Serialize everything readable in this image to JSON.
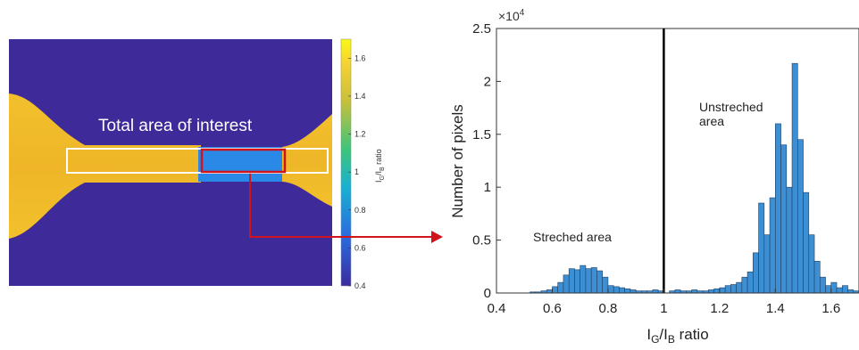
{
  "image_panel": {
    "overlay_label": "Total area of interest",
    "colorbar": {
      "label_main": "I",
      "label_sub_g": "G",
      "label_slash": "/I",
      "label_sub_b": "B",
      "label_rest": " ratio",
      "ticks": [
        "1.6",
        "1.4",
        "1.2",
        "1",
        "0.8",
        "0.6",
        "0.4"
      ],
      "range": [
        0.4,
        1.7
      ],
      "colors": [
        "#3a2b9e",
        "#2a6be0",
        "#18b1d2",
        "#3cc47c",
        "#c8c03a",
        "#f6d233",
        "#f9fa14"
      ]
    },
    "colors": {
      "background": "#3f2a9a",
      "specimen": "#f0b82a",
      "stretched": "#2a88e6",
      "box_white": "#ffffff",
      "box_red": "#d0141e",
      "arrow": "#d0141e"
    }
  },
  "chart_data": {
    "type": "bar",
    "title": "",
    "xlabel_main": "I",
    "xlabel_sub_g": "G",
    "xlabel_slash": "/I",
    "xlabel_sub_b": "B",
    "xlabel_rest": " ratio",
    "ylabel": "Number of pixels",
    "y_multiplier": "×10",
    "y_multiplier_exp": "4",
    "xlim": [
      0.4,
      1.7
    ],
    "ylim": [
      0,
      2.5
    ],
    "xticks": [
      "0.4",
      "0.6",
      "0.8",
      "1",
      "1.2",
      "1.4",
      "1.6"
    ],
    "yticks": [
      "0",
      "0.5",
      "1",
      "1.5",
      "2",
      "2.5"
    ],
    "divider_x": 1.0,
    "bar_color": "#3d8fd4",
    "bin_width": 0.02,
    "bin_starts": [
      0.4,
      0.42,
      0.44,
      0.46,
      0.48,
      0.5,
      0.52,
      0.54,
      0.56,
      0.58,
      0.6,
      0.62,
      0.64,
      0.66,
      0.68,
      0.7,
      0.72,
      0.74,
      0.76,
      0.78,
      0.8,
      0.82,
      0.84,
      0.86,
      0.88,
      0.9,
      0.92,
      0.94,
      0.96,
      0.98,
      1.0,
      1.02,
      1.04,
      1.06,
      1.08,
      1.1,
      1.12,
      1.14,
      1.16,
      1.18,
      1.2,
      1.22,
      1.24,
      1.26,
      1.28,
      1.3,
      1.32,
      1.34,
      1.36,
      1.38,
      1.4,
      1.42,
      1.44,
      1.46,
      1.48,
      1.5,
      1.52,
      1.54,
      1.56,
      1.58,
      1.6,
      1.62,
      1.64,
      1.66,
      1.68
    ],
    "values": [
      0,
      0,
      0,
      0,
      0,
      0,
      0.01,
      0.01,
      0.02,
      0.03,
      0.06,
      0.1,
      0.17,
      0.23,
      0.22,
      0.26,
      0.23,
      0.24,
      0.21,
      0.15,
      0.07,
      0.06,
      0.05,
      0.04,
      0.03,
      0.02,
      0.02,
      0.02,
      0.03,
      0.02,
      0,
      0.02,
      0.03,
      0.02,
      0.02,
      0.03,
      0.02,
      0.02,
      0.03,
      0.04,
      0.05,
      0.07,
      0.08,
      0.1,
      0.15,
      0.2,
      0.38,
      0.85,
      0.55,
      0.9,
      1.6,
      1.4,
      1.0,
      2.17,
      1.45,
      0.95,
      0.55,
      0.3,
      0.15,
      0.07,
      0.1,
      0.05,
      0.07,
      0.03,
      0.02
    ],
    "annotations": [
      {
        "text": "Streched area"
      },
      {
        "text": "Unstreched"
      },
      {
        "text": "area"
      }
    ]
  }
}
